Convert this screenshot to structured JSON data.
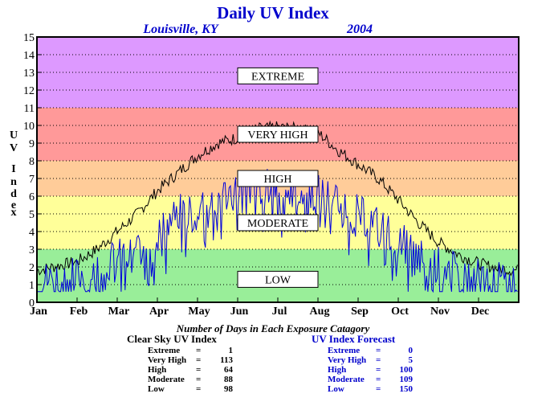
{
  "chart_data": {
    "type": "line",
    "title": "Daily UV Index",
    "location": "Louisville, KY",
    "year": "2004",
    "ylabel": "UV Index",
    "ylim": [
      0,
      15
    ],
    "yticks": [
      "0",
      "1",
      "2",
      "3",
      "4",
      "5",
      "6",
      "7",
      "8",
      "9",
      "10",
      "11",
      "12",
      "13",
      "14",
      "15"
    ],
    "months": [
      "Jan",
      "Feb",
      "Mar",
      "Apr",
      "May",
      "Jun",
      "Jul",
      "Aug",
      "Sep",
      "Oct",
      "Nov",
      "Dec"
    ],
    "grid": true,
    "bands": [
      {
        "label": "LOW",
        "from": 0,
        "to": 3,
        "color": "#99ee99"
      },
      {
        "label": "MODERATE",
        "from": 3,
        "to": 6,
        "color": "#ffff99"
      },
      {
        "label": "HIGH",
        "from": 6,
        "to": 8,
        "color": "#ffcc99"
      },
      {
        "label": "VERY HIGH",
        "from": 8,
        "to": 11,
        "color": "#ff9999"
      },
      {
        "label": "EXTREME",
        "from": 11,
        "to": 15,
        "color": "#dd99ff"
      }
    ],
    "series": [
      {
        "color": "#000000",
        "monthly_points": [
          {
            "x": 0,
            "y": 1.8
          },
          {
            "x": 1,
            "y": 2.3
          },
          {
            "x": 1.5,
            "y": 3.0
          },
          {
            "x": 2,
            "y": 4.0
          },
          {
            "x": 2.5,
            "y": 5.0
          },
          {
            "x": 3,
            "y": 6.3
          },
          {
            "x": 3.5,
            "y": 7.3
          },
          {
            "x": 4,
            "y": 8.3
          },
          {
            "x": 4.5,
            "y": 9.0
          },
          {
            "x": 5,
            "y": 9.3
          },
          {
            "x": 5.5,
            "y": 9.8
          },
          {
            "x": 6,
            "y": 9.9
          },
          {
            "x": 6.5,
            "y": 9.8
          },
          {
            "x": 7,
            "y": 9.6
          },
          {
            "x": 7.5,
            "y": 8.6
          },
          {
            "x": 8,
            "y": 7.8
          },
          {
            "x": 8.5,
            "y": 7.0
          },
          {
            "x": 9,
            "y": 5.8
          },
          {
            "x": 9.5,
            "y": 4.5
          },
          {
            "x": 10,
            "y": 3.4
          },
          {
            "x": 10.5,
            "y": 2.7
          },
          {
            "x": 11,
            "y": 2.2
          },
          {
            "x": 11.5,
            "y": 1.9
          },
          {
            "x": 12,
            "y": 1.8
          }
        ]
      },
      {
        "color": "#0000dd",
        "monthly_points": [
          {
            "x": 0,
            "y": 1.2
          },
          {
            "x": 1,
            "y": 1.5
          },
          {
            "x": 1.5,
            "y": 2.0
          },
          {
            "x": 2,
            "y": 2.5
          },
          {
            "x": 2.5,
            "y": 3.0
          },
          {
            "x": 3,
            "y": 3.8
          },
          {
            "x": 3.5,
            "y": 5.0
          },
          {
            "x": 4,
            "y": 5.5
          },
          {
            "x": 4.5,
            "y": 6.0
          },
          {
            "x": 5,
            "y": 6.3
          },
          {
            "x": 5.5,
            "y": 6.6
          },
          {
            "x": 6,
            "y": 6.5
          },
          {
            "x": 6.5,
            "y": 6.3
          },
          {
            "x": 7,
            "y": 6.2
          },
          {
            "x": 7.5,
            "y": 5.8
          },
          {
            "x": 8,
            "y": 5.0
          },
          {
            "x": 8.5,
            "y": 4.4
          },
          {
            "x": 9,
            "y": 3.6
          },
          {
            "x": 9.5,
            "y": 2.6
          },
          {
            "x": 10,
            "y": 2.1
          },
          {
            "x": 10.5,
            "y": 1.7
          },
          {
            "x": 11,
            "y": 1.4
          },
          {
            "x": 11.5,
            "y": 1.2
          },
          {
            "x": 12,
            "y": 1.1
          }
        ]
      }
    ]
  },
  "summary": {
    "heading": "Number of Days in Each Exposure Catagory",
    "clear_sky": {
      "title": "Clear Sky UV Index",
      "color": "#000000",
      "rows": [
        {
          "label": "Extreme",
          "eq": "=",
          "value": "1"
        },
        {
          "label": "Very High",
          "eq": "=",
          "value": "113"
        },
        {
          "label": "High",
          "eq": "=",
          "value": "64"
        },
        {
          "label": "Moderate",
          "eq": "=",
          "value": "88"
        },
        {
          "label": "Low",
          "eq": "=",
          "value": "98"
        }
      ]
    },
    "forecast": {
      "title": "UV Index Forecast",
      "color": "#0000cc",
      "rows": [
        {
          "label": "Extreme",
          "eq": "=",
          "value": "0"
        },
        {
          "label": "Very High",
          "eq": "=",
          "value": "5"
        },
        {
          "label": "High",
          "eq": "=",
          "value": "100"
        },
        {
          "label": "Moderate",
          "eq": "=",
          "value": "109"
        },
        {
          "label": "Low",
          "eq": "=",
          "value": "150"
        }
      ]
    }
  }
}
